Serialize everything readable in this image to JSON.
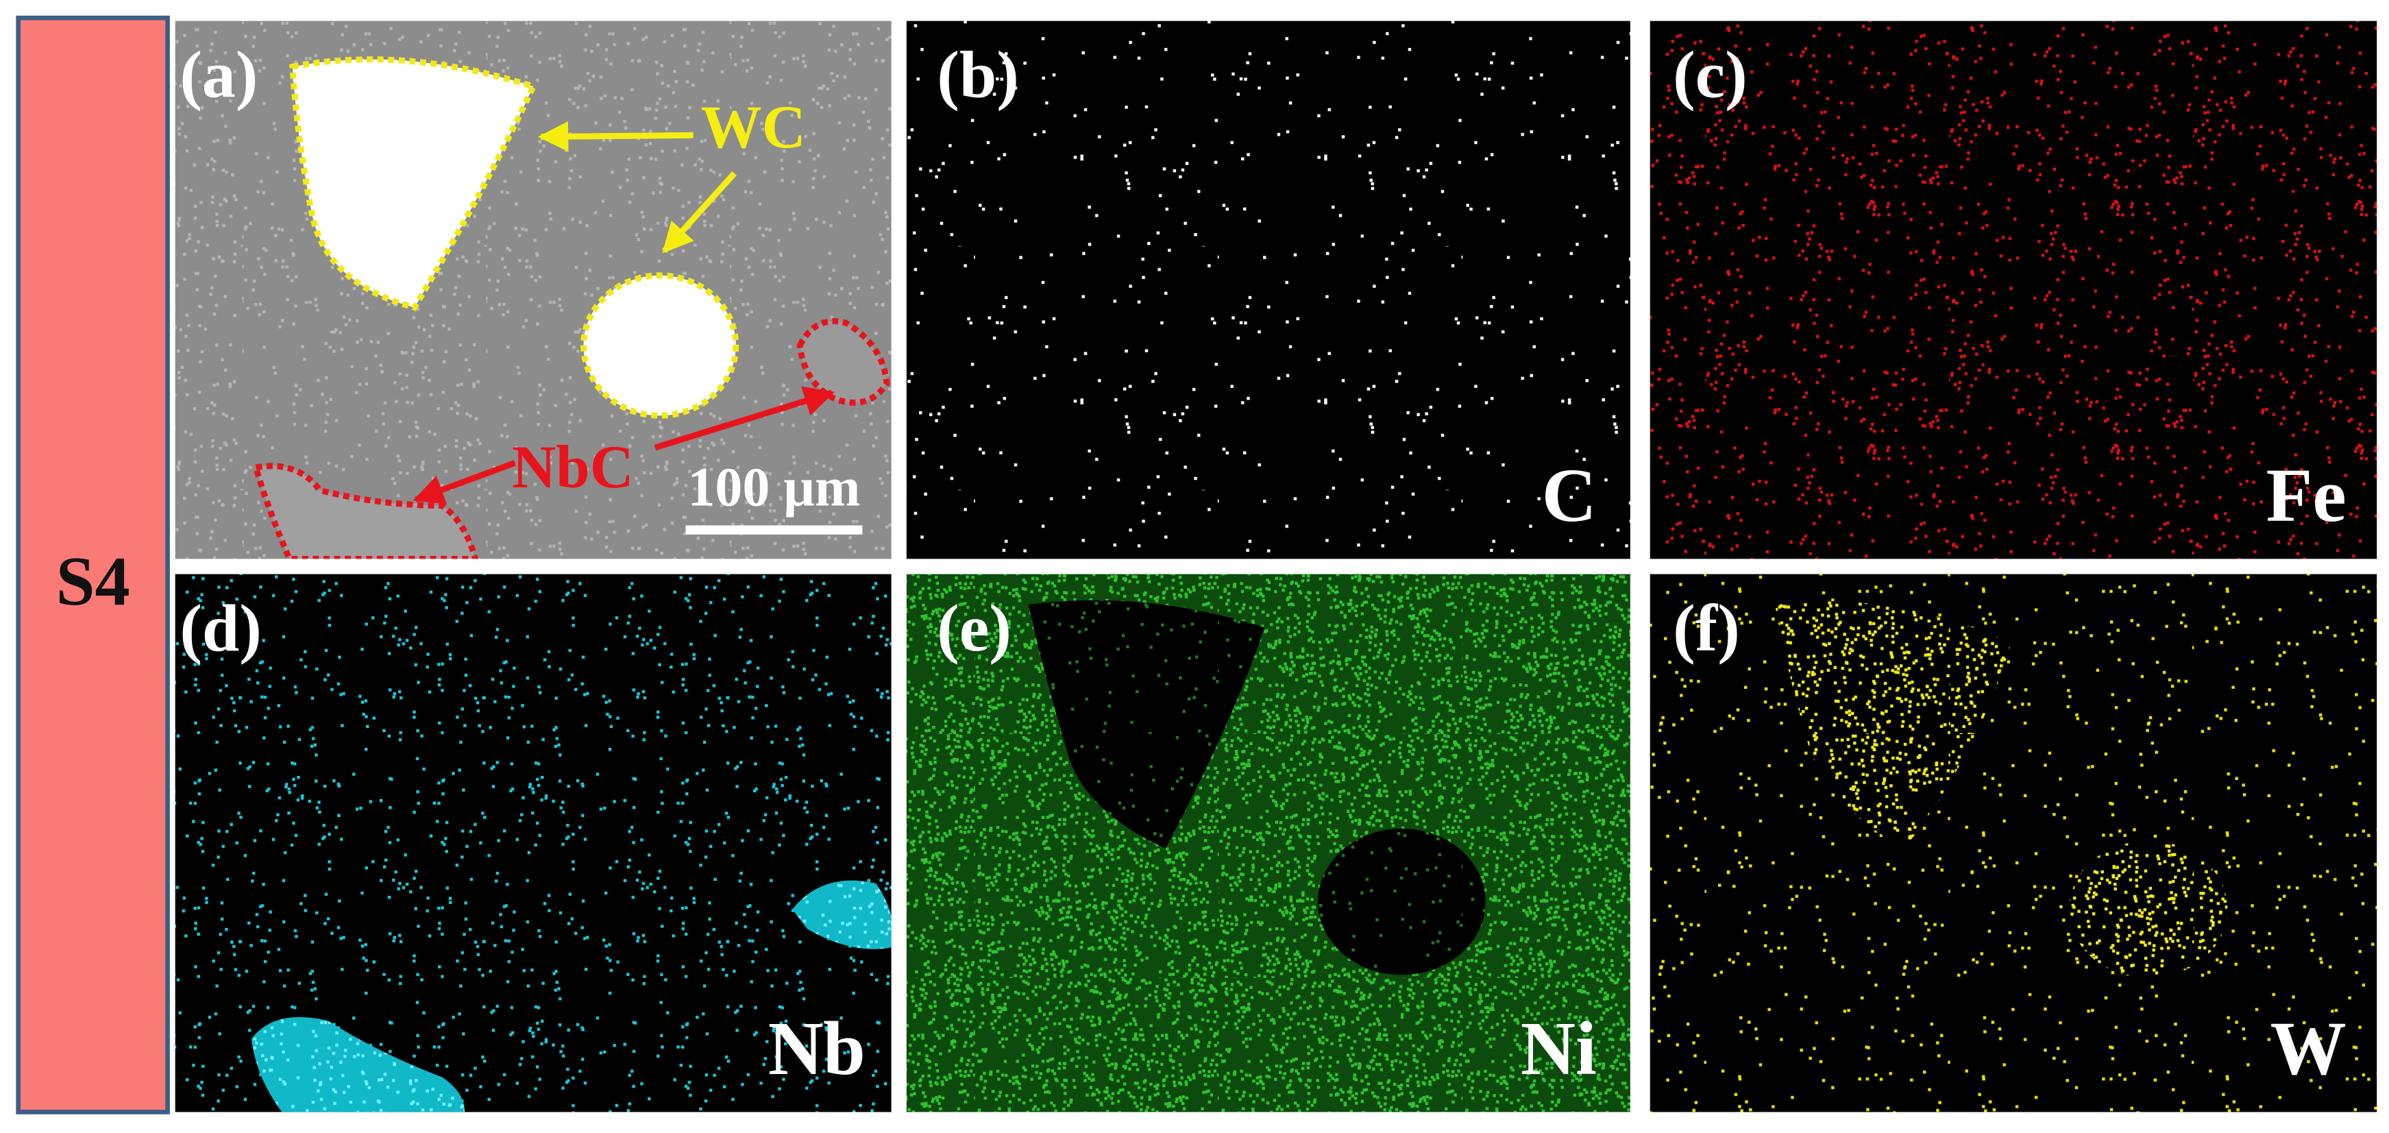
{
  "figure": {
    "sample_label": "S4",
    "panels": [
      {
        "label": "(a)",
        "annotations": [
          "WC",
          "NbC"
        ],
        "scale_bar": "100 μm"
      },
      {
        "label": "(b)",
        "element": "C"
      },
      {
        "label": "(c)",
        "element": "Fe"
      },
      {
        "label": "(d)",
        "element": "Nb"
      },
      {
        "label": "(e)",
        "element": "Ni"
      },
      {
        "label": "(f)",
        "element": "W"
      }
    ]
  }
}
